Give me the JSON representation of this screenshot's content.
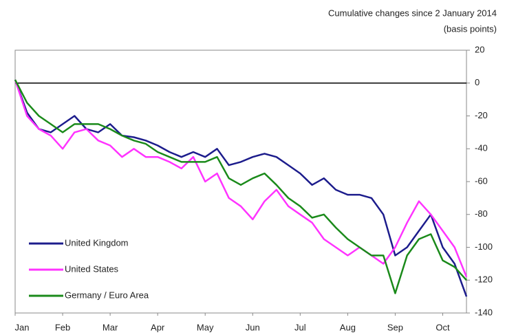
{
  "chart_data": {
    "type": "line",
    "title": "Cumulative  changes since 2 January 2014",
    "subtitle": "(basis points)",
    "categories": [
      "Jan",
      null,
      null,
      null,
      "Feb",
      null,
      null,
      null,
      "Mar",
      null,
      null,
      null,
      "Apr",
      null,
      null,
      null,
      "May",
      null,
      null,
      null,
      "Jun",
      null,
      null,
      null,
      "Jul",
      null,
      null,
      null,
      "Aug",
      null,
      null,
      null,
      "Sep",
      null,
      null,
      null,
      "Oct",
      null,
      null
    ],
    "series": [
      {
        "name": "United Kingdom",
        "color": "#1c1c8c",
        "values": [
          2,
          -18,
          -28,
          -30,
          -25,
          -20,
          -28,
          -30,
          -25,
          -32,
          -33,
          -35,
          -38,
          -42,
          -45,
          -42,
          -45,
          -40,
          -50,
          -48,
          -45,
          -43,
          -45,
          -50,
          -55,
          -62,
          -58,
          -65,
          -68,
          -68,
          -70,
          -80,
          -105,
          -100,
          -90,
          -80,
          -100,
          -110,
          -130
        ]
      },
      {
        "name": "United States",
        "color": "#ff33ff",
        "values": [
          2,
          -20,
          -28,
          -32,
          -40,
          -30,
          -28,
          -35,
          -38,
          -45,
          -40,
          -45,
          -45,
          -48,
          -52,
          -45,
          -60,
          -55,
          -70,
          -75,
          -83,
          -72,
          -65,
          -75,
          -80,
          -85,
          -95,
          -100,
          -105,
          -100,
          -105,
          -110,
          -100,
          -85,
          -72,
          -80,
          -90,
          -100,
          -118
        ]
      },
      {
        "name": "Germany / Euro Area",
        "color": "#1a8a1a",
        "values": [
          2,
          -12,
          -20,
          -25,
          -30,
          -25,
          -25,
          -25,
          -28,
          -32,
          -35,
          -37,
          -42,
          -45,
          -48,
          -48,
          -48,
          -45,
          -58,
          -62,
          -58,
          -55,
          -62,
          -70,
          -75,
          -82,
          -80,
          -88,
          -95,
          -100,
          -105,
          -105,
          -128,
          -105,
          -95,
          -92,
          -108,
          -112,
          -120
        ]
      }
    ],
    "ylim": [
      -140,
      20
    ],
    "yticks": [
      -140,
      -120,
      -100,
      -80,
      -60,
      -40,
      -20,
      0,
      20
    ],
    "y_axis_side": "right",
    "zero_line": true,
    "legend": "lower left"
  }
}
